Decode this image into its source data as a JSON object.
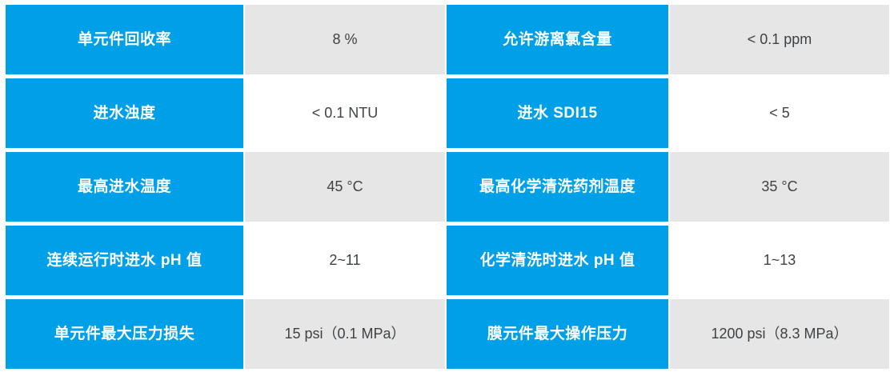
{
  "colors": {
    "label_bg": "#00A0E8",
    "label_text": "#FFFFFF",
    "value_bg_odd": "#E6E6E6",
    "value_bg_even": "#FFFFFF",
    "value_text": "#3F4245"
  },
  "table": {
    "rows": [
      {
        "left_label": "单元件回收率",
        "left_value": "8 %",
        "right_label": "允许游离氯含量",
        "right_value": "< 0.1 ppm"
      },
      {
        "left_label": "进水浊度",
        "left_value": "< 0.1 NTU",
        "right_label": "进水 SDI15",
        "right_value": "< 5"
      },
      {
        "left_label": "最高进水温度",
        "left_value": "45 °C",
        "right_label": "最高化学清洗药剂温度",
        "right_value": "35 °C"
      },
      {
        "left_label": "连续运行时进水 pH 值",
        "left_value": "2~11",
        "right_label": "化学清洗时进水 pH 值",
        "right_value": "1~13"
      },
      {
        "left_label": "单元件最大压力损失",
        "left_value": "15 psi（0.1 MPa）",
        "right_label": "膜元件最大操作压力",
        "right_value": "1200 psi（8.3 MPa）"
      }
    ]
  }
}
